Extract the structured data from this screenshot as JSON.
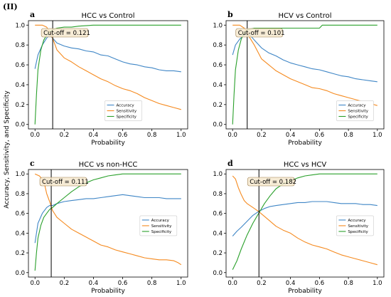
{
  "figure_label": "(II)",
  "ylabel": "Accuracy, Sensitivity, and Specificity",
  "colors": {
    "accuracy": "#3f86c6",
    "sensitivity": "#f58a1f",
    "specificity": "#2aa02b",
    "cutoff_line": "#000000"
  },
  "chart_data": [
    {
      "type": "line",
      "letter": "a",
      "title": "HCC vs Control",
      "xlabel": "Probability",
      "xlim": [
        0,
        1
      ],
      "ylim": [
        0,
        1
      ],
      "xticks": [
        "0.0",
        "0.2",
        "0.4",
        "0.6",
        "0.8",
        "1.0"
      ],
      "yticks": [
        "0.0",
        "0.2",
        "0.4",
        "0.6",
        "0.8",
        "1.0"
      ],
      "cutoff": 0.121,
      "cutoff_text": "Cut-off = 0.121",
      "legend_position": "lower-center",
      "series": [
        {
          "name": "Accuracy",
          "color_key": "accuracy",
          "x": [
            0.0,
            0.02,
            0.05,
            0.08,
            0.1,
            0.12,
            0.15,
            0.2,
            0.25,
            0.3,
            0.35,
            0.4,
            0.45,
            0.5,
            0.55,
            0.6,
            0.65,
            0.7,
            0.75,
            0.8,
            0.85,
            0.9,
            0.95,
            1.0
          ],
          "y": [
            0.56,
            0.7,
            0.8,
            0.87,
            0.9,
            0.87,
            0.82,
            0.79,
            0.77,
            0.76,
            0.74,
            0.73,
            0.7,
            0.69,
            0.66,
            0.63,
            0.61,
            0.6,
            0.58,
            0.57,
            0.55,
            0.54,
            0.54,
            0.53
          ]
        },
        {
          "name": "Sensitivity",
          "color_key": "sensitivity",
          "x": [
            0.0,
            0.05,
            0.08,
            0.1,
            0.12,
            0.15,
            0.2,
            0.25,
            0.3,
            0.35,
            0.4,
            0.45,
            0.5,
            0.55,
            0.6,
            0.65,
            0.7,
            0.75,
            0.8,
            0.85,
            0.9,
            0.95,
            1.0
          ],
          "y": [
            1.0,
            1.0,
            0.98,
            0.93,
            0.87,
            0.75,
            0.67,
            0.63,
            0.58,
            0.54,
            0.5,
            0.46,
            0.43,
            0.39,
            0.36,
            0.34,
            0.31,
            0.27,
            0.24,
            0.21,
            0.19,
            0.17,
            0.15
          ]
        },
        {
          "name": "Specificity",
          "color_key": "specificity",
          "x": [
            0.0,
            0.01,
            0.02,
            0.04,
            0.06,
            0.08,
            0.1,
            0.12,
            0.15,
            0.2,
            0.25,
            0.3,
            0.4,
            0.5,
            0.6,
            0.7,
            0.8,
            0.9,
            1.0
          ],
          "y": [
            0.0,
            0.3,
            0.55,
            0.75,
            0.85,
            0.9,
            0.93,
            0.95,
            0.97,
            0.98,
            0.98,
            0.99,
            1.0,
            1.0,
            1.0,
            1.0,
            1.0,
            1.0,
            1.0
          ]
        }
      ]
    },
    {
      "type": "line",
      "letter": "b",
      "title": "HCV vs Control",
      "xlabel": "Probability",
      "xlim": [
        0,
        1
      ],
      "ylim": [
        0,
        1
      ],
      "xticks": [
        "0.0",
        "0.2",
        "0.4",
        "0.6",
        "0.8",
        "1.0"
      ],
      "yticks": [
        "0.0",
        "0.2",
        "0.4",
        "0.6",
        "0.8",
        "1.0"
      ],
      "cutoff": 0.101,
      "cutoff_text": "Cut-off = 0.101",
      "legend_position": "lower-right",
      "series": [
        {
          "name": "Accuracy",
          "color_key": "accuracy",
          "x": [
            0.0,
            0.02,
            0.05,
            0.08,
            0.1,
            0.12,
            0.15,
            0.2,
            0.25,
            0.3,
            0.35,
            0.4,
            0.45,
            0.5,
            0.55,
            0.6,
            0.65,
            0.7,
            0.75,
            0.8,
            0.85,
            0.9,
            0.95,
            1.0
          ],
          "y": [
            0.7,
            0.8,
            0.86,
            0.9,
            0.92,
            0.9,
            0.85,
            0.77,
            0.72,
            0.69,
            0.65,
            0.62,
            0.6,
            0.58,
            0.56,
            0.55,
            0.53,
            0.51,
            0.49,
            0.48,
            0.46,
            0.45,
            0.44,
            0.43
          ]
        },
        {
          "name": "Sensitivity",
          "color_key": "sensitivity",
          "x": [
            0.0,
            0.05,
            0.08,
            0.1,
            0.12,
            0.15,
            0.2,
            0.25,
            0.3,
            0.35,
            0.4,
            0.45,
            0.5,
            0.55,
            0.6,
            0.65,
            0.7,
            0.75,
            0.8,
            0.85,
            0.9,
            0.95,
            1.0
          ],
          "y": [
            1.0,
            1.0,
            0.97,
            0.93,
            0.87,
            0.8,
            0.66,
            0.6,
            0.54,
            0.5,
            0.46,
            0.43,
            0.4,
            0.37,
            0.36,
            0.34,
            0.31,
            0.29,
            0.27,
            0.25,
            0.23,
            0.21,
            0.19
          ]
        },
        {
          "name": "Specificity",
          "color_key": "specificity",
          "x": [
            0.0,
            0.01,
            0.02,
            0.04,
            0.06,
            0.08,
            0.1,
            0.12,
            0.15,
            0.2,
            0.3,
            0.4,
            0.5,
            0.6,
            0.62,
            0.7,
            0.8,
            0.9,
            1.0
          ],
          "y": [
            0.0,
            0.3,
            0.55,
            0.75,
            0.86,
            0.92,
            0.95,
            0.96,
            0.97,
            0.97,
            0.97,
            0.97,
            0.97,
            0.97,
            1.0,
            1.0,
            1.0,
            1.0,
            1.0
          ]
        }
      ]
    },
    {
      "type": "line",
      "letter": "c",
      "title": "HCC vs non-HCC",
      "xlabel": "Probability",
      "xlim": [
        0,
        1
      ],
      "ylim": [
        0,
        1
      ],
      "xticks": [
        "0.0",
        "0.2",
        "0.4",
        "0.6",
        "0.8",
        "1.0"
      ],
      "yticks": [
        "0.0",
        "0.2",
        "0.4",
        "0.6",
        "0.8",
        "1.0"
      ],
      "cutoff": 0.111,
      "cutoff_text": "Cut-off = 0.111",
      "legend_position": "center-right",
      "series": [
        {
          "name": "Accuracy",
          "color_key": "accuracy",
          "x": [
            0.0,
            0.02,
            0.05,
            0.08,
            0.1,
            0.12,
            0.15,
            0.2,
            0.25,
            0.3,
            0.35,
            0.4,
            0.45,
            0.5,
            0.55,
            0.6,
            0.65,
            0.7,
            0.75,
            0.8,
            0.85,
            0.9,
            0.95,
            1.0
          ],
          "y": [
            0.3,
            0.5,
            0.6,
            0.66,
            0.68,
            0.68,
            0.7,
            0.72,
            0.73,
            0.74,
            0.75,
            0.75,
            0.76,
            0.77,
            0.78,
            0.79,
            0.78,
            0.77,
            0.76,
            0.76,
            0.76,
            0.75,
            0.75,
            0.75
          ]
        },
        {
          "name": "Sensitivity",
          "color_key": "sensitivity",
          "x": [
            0.0,
            0.03,
            0.06,
            0.08,
            0.1,
            0.12,
            0.15,
            0.2,
            0.25,
            0.3,
            0.35,
            0.4,
            0.45,
            0.5,
            0.55,
            0.6,
            0.65,
            0.7,
            0.75,
            0.8,
            0.85,
            0.9,
            0.95,
            0.98,
            1.0
          ],
          "y": [
            1.0,
            0.98,
            0.93,
            0.8,
            0.72,
            0.63,
            0.56,
            0.5,
            0.44,
            0.4,
            0.36,
            0.32,
            0.28,
            0.26,
            0.23,
            0.21,
            0.19,
            0.17,
            0.15,
            0.14,
            0.13,
            0.13,
            0.12,
            0.1,
            0.08
          ]
        },
        {
          "name": "Specificity",
          "color_key": "specificity",
          "x": [
            0.0,
            0.01,
            0.02,
            0.04,
            0.06,
            0.08,
            0.1,
            0.12,
            0.15,
            0.2,
            0.25,
            0.3,
            0.35,
            0.4,
            0.45,
            0.5,
            0.55,
            0.6,
            0.7,
            0.8,
            0.9,
            1.0
          ],
          "y": [
            0.02,
            0.2,
            0.35,
            0.48,
            0.56,
            0.6,
            0.64,
            0.66,
            0.7,
            0.76,
            0.82,
            0.87,
            0.91,
            0.94,
            0.96,
            0.98,
            0.99,
            1.0,
            1.0,
            1.0,
            1.0,
            1.0
          ]
        }
      ]
    },
    {
      "type": "line",
      "letter": "d",
      "title": "HCC vs HCV",
      "xlabel": "Probability",
      "xlim": [
        0,
        1
      ],
      "ylim": [
        0,
        1
      ],
      "xticks": [
        "0.0",
        "0.2",
        "0.4",
        "0.6",
        "0.8",
        "1.0"
      ],
      "yticks": [
        "0.0",
        "0.2",
        "0.4",
        "0.6",
        "0.8",
        "1.0"
      ],
      "cutoff": 0.182,
      "cutoff_text": "Cut-off = 0.182",
      "legend_position": "center-right",
      "series": [
        {
          "name": "Accuracy",
          "color_key": "accuracy",
          "x": [
            0.0,
            0.03,
            0.06,
            0.1,
            0.14,
            0.18,
            0.22,
            0.26,
            0.3,
            0.35,
            0.4,
            0.45,
            0.5,
            0.55,
            0.6,
            0.65,
            0.7,
            0.75,
            0.8,
            0.85,
            0.9,
            0.95,
            1.0
          ],
          "y": [
            0.37,
            0.42,
            0.46,
            0.52,
            0.58,
            0.62,
            0.65,
            0.67,
            0.68,
            0.69,
            0.7,
            0.71,
            0.71,
            0.72,
            0.72,
            0.72,
            0.71,
            0.7,
            0.7,
            0.7,
            0.69,
            0.69,
            0.68
          ]
        },
        {
          "name": "Sensitivity",
          "color_key": "sensitivity",
          "x": [
            0.0,
            0.02,
            0.04,
            0.06,
            0.08,
            0.1,
            0.14,
            0.18,
            0.22,
            0.26,
            0.3,
            0.35,
            0.4,
            0.45,
            0.5,
            0.55,
            0.6,
            0.65,
            0.7,
            0.75,
            0.8,
            0.85,
            0.9,
            0.95,
            1.0
          ],
          "y": [
            0.98,
            0.95,
            0.86,
            0.79,
            0.73,
            0.7,
            0.66,
            0.62,
            0.57,
            0.52,
            0.47,
            0.43,
            0.4,
            0.35,
            0.31,
            0.28,
            0.26,
            0.24,
            0.21,
            0.18,
            0.16,
            0.14,
            0.12,
            0.1,
            0.08
          ]
        },
        {
          "name": "Specificity",
          "color_key": "specificity",
          "x": [
            0.0,
            0.03,
            0.06,
            0.1,
            0.14,
            0.18,
            0.22,
            0.26,
            0.3,
            0.35,
            0.4,
            0.45,
            0.5,
            0.55,
            0.6,
            0.65,
            0.7,
            0.8,
            0.9,
            1.0
          ],
          "y": [
            0.03,
            0.12,
            0.24,
            0.38,
            0.5,
            0.6,
            0.7,
            0.78,
            0.85,
            0.9,
            0.93,
            0.96,
            0.98,
            0.99,
            1.0,
            1.0,
            1.0,
            1.0,
            1.0,
            1.0
          ]
        }
      ]
    }
  ]
}
